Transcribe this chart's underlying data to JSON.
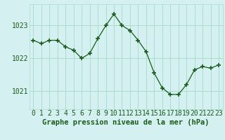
{
  "x": [
    0,
    1,
    2,
    3,
    4,
    5,
    6,
    7,
    8,
    9,
    10,
    11,
    12,
    13,
    14,
    15,
    16,
    17,
    18,
    19,
    20,
    21,
    22,
    23
  ],
  "y": [
    1022.55,
    1022.45,
    1022.55,
    1022.55,
    1022.35,
    1022.25,
    1022.0,
    1022.15,
    1022.6,
    1023.0,
    1023.35,
    1023.0,
    1022.85,
    1022.55,
    1022.2,
    1021.55,
    1021.1,
    1020.9,
    1020.9,
    1021.2,
    1021.65,
    1021.75,
    1021.7,
    1021.8
  ],
  "line_color": "#1a5c1a",
  "marker": "+",
  "marker_size": 4,
  "marker_linewidth": 1.2,
  "bg_color": "#d4f0f0",
  "grid_color": "#aaddcc",
  "ylabel_ticks": [
    1021,
    1022,
    1023
  ],
  "xlabel_label": "Graphe pression niveau de la mer (hPa)",
  "xlabel_color": "#1a5c1a",
  "tick_color": "#1a5c1a",
  "label_fontsize": 7,
  "axis_label_fontsize": 7.5,
  "ylim": [
    1020.45,
    1023.65
  ],
  "xlim": [
    -0.5,
    23.5
  ]
}
